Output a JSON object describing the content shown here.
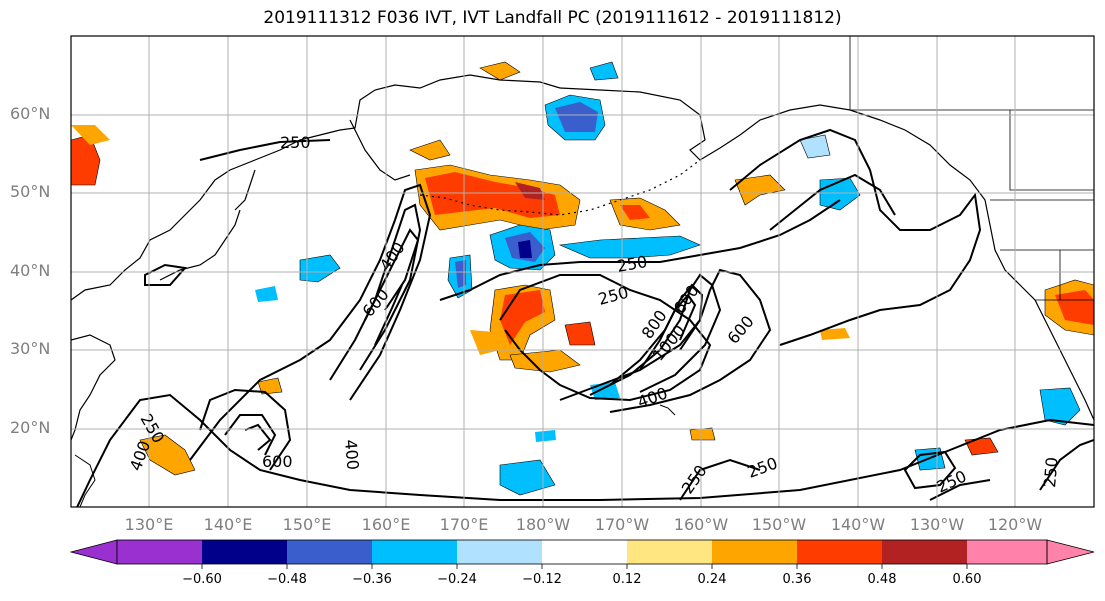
{
  "title": "2019111312 F036 IVT, IVT Landfall PC (2019111612 - 2019111812)",
  "lat_labels": [
    "60°N",
    "50°N",
    "40°N",
    "30°N",
    "20°N"
  ],
  "lon_labels": [
    "130°E",
    "140°E",
    "150°E",
    "160°E",
    "170°E",
    "180°W",
    "170°W",
    "160°W",
    "150°W",
    "140°W",
    "130°W",
    "120°W"
  ],
  "colorbar": {
    "ticks": [
      "−0.60",
      "−0.48",
      "−0.36",
      "−0.24",
      "−0.12",
      "0.12",
      "0.24",
      "0.36",
      "0.48",
      "0.60"
    ],
    "colors": [
      "#9b30d0",
      "#00008b",
      "#3a5fcd",
      "#00bfff",
      "#b0e2ff",
      "#ffffff",
      "#ffe680",
      "#ffa500",
      "#ff3c00",
      "#b22222",
      "#ff82ab"
    ]
  },
  "contour_labels": [
    "250",
    "400",
    "600",
    "250",
    "250",
    "400",
    "600",
    "400",
    "600",
    "800",
    "1000",
    "250",
    "250",
    "250",
    "400",
    "600",
    "250",
    "250"
  ]
}
